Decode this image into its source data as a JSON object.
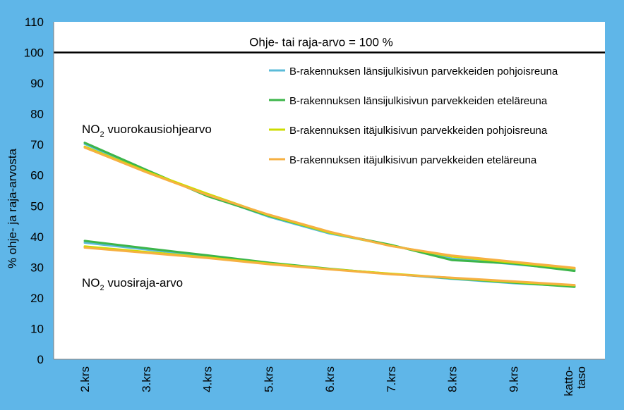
{
  "chart_data": {
    "type": "line",
    "ylabel": "% ohje- ja raja-arvosta",
    "ylim": [
      0,
      110
    ],
    "yticks": [
      0,
      10,
      20,
      30,
      40,
      50,
      60,
      70,
      80,
      90,
      100,
      110
    ],
    "categories": [
      "2.krs",
      "3.krs",
      "4.krs",
      "5.krs",
      "6.krs",
      "7.krs",
      "8.krs",
      "9.krs",
      "katto-\ntaso"
    ],
    "grid": false,
    "legend_position": "top-right",
    "reference_line": {
      "value": 100,
      "label": "Ohje- tai raja-arvo = 100 %",
      "color": "#000000"
    },
    "annotations": {
      "daily": {
        "prefix": "NO",
        "sub": "2",
        "suffix": " vuorokausiohjearvo"
      },
      "annual": {
        "prefix": "NO",
        "sub": "2",
        "suffix": " vuosiraja-arvo"
      }
    },
    "series": [
      {
        "name": "B-rakennuksen länsijulkisivun parvekkeiden pohjoisreuna",
        "color": "#5bbbd8",
        "values": [
          70.2,
          61.5,
          53.5,
          46.5,
          41.0,
          37.2,
          32.8,
          31.0,
          29.2
        ]
      },
      {
        "name": "B-rakennuksen länsijulkisivun parvekkeiden eteläreuna",
        "color": "#3cb54a",
        "values": [
          70.6,
          61.8,
          53.2,
          46.8,
          41.3,
          37.3,
          32.3,
          31.2,
          28.8
        ]
      },
      {
        "name": "B-rakennuksen itäjulkisivun parvekkeiden pohjoisreuna",
        "color": "#cddc00",
        "values": [
          69.3,
          61.3,
          54.0,
          47.0,
          41.3,
          37.0,
          33.5,
          31.5,
          29.6
        ]
      },
      {
        "name": "B-rakennuksen itäjulkisivun parvekkeiden eteläreuna",
        "color": "#f6b042",
        "values": [
          69.0,
          61.0,
          53.6,
          47.2,
          41.6,
          36.9,
          33.8,
          31.8,
          29.8
        ]
      },
      {
        "name": "",
        "color": "#5bbbd8",
        "values": [
          38.0,
          35.8,
          33.6,
          31.3,
          29.4,
          27.8,
          26.2,
          24.8,
          23.8
        ]
      },
      {
        "name": "",
        "color": "#3cb54a",
        "values": [
          38.6,
          36.2,
          33.9,
          31.5,
          29.5,
          27.8,
          26.4,
          25.0,
          23.6
        ]
      },
      {
        "name": "",
        "color": "#cddc00",
        "values": [
          36.8,
          35.0,
          33.2,
          31.2,
          29.4,
          27.9,
          26.5,
          25.2,
          24.1
        ]
      },
      {
        "name": "",
        "color": "#f6b042",
        "values": [
          36.4,
          34.7,
          33.0,
          31.0,
          29.3,
          27.7,
          26.6,
          25.4,
          24.2
        ]
      }
    ]
  }
}
